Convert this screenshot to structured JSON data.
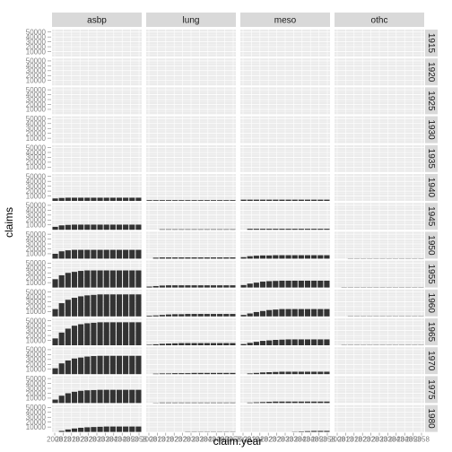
{
  "chart_data": {
    "type": "bar",
    "facet_columns": [
      "asbp",
      "lung",
      "meso",
      "othc"
    ],
    "facet_rows": [
      "1915",
      "1920",
      "1925",
      "1930",
      "1935",
      "1940",
      "1945",
      "1950",
      "1955",
      "1960",
      "1965",
      "1970",
      "1975",
      "1980"
    ],
    "xlabel": "claim.year",
    "ylabel": "claims",
    "ylim": [
      0,
      55000
    ],
    "y_ticks": [
      "10000",
      "20000",
      "30000",
      "40000",
      "50000"
    ],
    "x_ticks": [
      "2008",
      "2013",
      "2018",
      "2023",
      "2028",
      "2033",
      "2038",
      "2043",
      "2048",
      "2053",
      "2058"
    ],
    "x_tick_label_visible": "20",
    "grid": true,
    "bar_color": "#333333",
    "panel_bg": "#ebebeb",
    "strip_bg": "#d9d9d9",
    "series": [
      {
        "cohort": "1940",
        "type": "asbp",
        "values": [
          5000,
          6000,
          6500,
          6500,
          6500,
          6500,
          6500,
          6500,
          6500,
          6500,
          6500,
          6500,
          6500,
          6500
        ]
      },
      {
        "cohort": "1940",
        "type": "lung",
        "values": [
          1500,
          1500,
          1500,
          1500,
          1500,
          1500,
          1500,
          1500,
          1500,
          1500,
          1500,
          1500,
          1500,
          1500
        ]
      },
      {
        "cohort": "1940",
        "type": "meso",
        "values": [
          2500,
          2500,
          2500,
          2500,
          2500,
          2500,
          2500,
          2500,
          2500,
          2500,
          2500,
          2500,
          2500,
          2500
        ]
      },
      {
        "cohort": "1945",
        "type": "asbp",
        "values": [
          6000,
          9000,
          10000,
          10500,
          10500,
          10500,
          10500,
          10500,
          10500,
          10500,
          10500,
          10500,
          10500,
          10500
        ]
      },
      {
        "cohort": "1945",
        "type": "lung",
        "values": [
          0,
          0,
          1000,
          1000,
          1000,
          1000,
          1000,
          1000,
          1000,
          1000,
          1000,
          1000,
          1000,
          1000
        ]
      },
      {
        "cohort": "1945",
        "type": "meso",
        "values": [
          0,
          2000,
          2000,
          2000,
          2000,
          2000,
          2000,
          2000,
          2000,
          2000,
          2000,
          2000,
          2000,
          2000
        ]
      },
      {
        "cohort": "1950",
        "type": "asbp",
        "values": [
          10000,
          15000,
          17000,
          18000,
          18000,
          18000,
          18000,
          18000,
          18000,
          18000,
          18000,
          18000,
          18000,
          18000
        ]
      },
      {
        "cohort": "1950",
        "type": "lung",
        "values": [
          0,
          2000,
          2500,
          2500,
          2500,
          2500,
          2500,
          2500,
          2500,
          2500,
          2500,
          2500,
          2500,
          2500
        ]
      },
      {
        "cohort": "1950",
        "type": "meso",
        "values": [
          3000,
          5000,
          6000,
          6500,
          6500,
          7000,
          7000,
          7000,
          7000,
          7000,
          7000,
          7000,
          7000,
          7000
        ]
      },
      {
        "cohort": "1950",
        "type": "othc",
        "values": [
          0,
          0,
          500,
          500,
          500,
          500,
          500,
          500,
          500,
          500,
          500,
          500,
          500,
          500
        ]
      },
      {
        "cohort": "1955",
        "type": "asbp",
        "values": [
          17000,
          25000,
          30000,
          32000,
          34000,
          35000,
          35000,
          35000,
          35000,
          35000,
          35000,
          35000,
          35000,
          35000
        ]
      },
      {
        "cohort": "1955",
        "type": "lung",
        "values": [
          2000,
          3000,
          4000,
          4500,
          4500,
          4500,
          4500,
          4500,
          4500,
          4500,
          4500,
          4500,
          4500,
          4500
        ]
      },
      {
        "cohort": "1955",
        "type": "meso",
        "values": [
          5000,
          8000,
          10000,
          12000,
          13000,
          13500,
          14000,
          14000,
          14000,
          14000,
          14000,
          14000,
          14000,
          14000
        ]
      },
      {
        "cohort": "1955",
        "type": "othc",
        "values": [
          0,
          500,
          500,
          500,
          500,
          500,
          500,
          500,
          500,
          500,
          500,
          500,
          500,
          500
        ]
      },
      {
        "cohort": "1960",
        "type": "asbp",
        "values": [
          15000,
          27000,
          34000,
          38000,
          41000,
          43000,
          44000,
          45000,
          45000,
          45000,
          45000,
          45000,
          45000,
          45000
        ]
      },
      {
        "cohort": "1960",
        "type": "lung",
        "values": [
          1500,
          2000,
          3000,
          4000,
          4500,
          4500,
          5000,
          5000,
          5000,
          5000,
          5000,
          5000,
          5000,
          5000
        ]
      },
      {
        "cohort": "1960",
        "type": "meso",
        "values": [
          3000,
          6000,
          9000,
          11000,
          13000,
          14000,
          15000,
          15000,
          15000,
          15000,
          15000,
          15000,
          15000,
          15000
        ]
      },
      {
        "cohort": "1960",
        "type": "othc",
        "values": [
          0,
          0,
          500,
          500,
          500,
          500,
          500,
          500,
          500,
          500,
          500,
          500,
          500,
          500
        ]
      },
      {
        "cohort": "1965",
        "type": "asbp",
        "values": [
          14000,
          26000,
          34000,
          40000,
          43000,
          45000,
          46000,
          47000,
          47000,
          47000,
          47000,
          47000,
          47000,
          47000
        ]
      },
      {
        "cohort": "1965",
        "type": "lung",
        "values": [
          1000,
          2000,
          3000,
          3500,
          4000,
          4500,
          4500,
          4500,
          4500,
          4500,
          4500,
          4500,
          4500,
          4500
        ]
      },
      {
        "cohort": "1965",
        "type": "meso",
        "values": [
          2500,
          5000,
          7000,
          9000,
          10000,
          11000,
          11500,
          12000,
          12000,
          12000,
          12000,
          12000,
          12000,
          12000
        ]
      },
      {
        "cohort": "1965",
        "type": "othc",
        "values": [
          0,
          500,
          500,
          500,
          500,
          500,
          500,
          500,
          500,
          500,
          500,
          500,
          500,
          500
        ]
      },
      {
        "cohort": "1970",
        "type": "asbp",
        "values": [
          12000,
          22000,
          28000,
          32000,
          34000,
          36000,
          37000,
          37500,
          37500,
          37500,
          37500,
          37500,
          37500,
          37500
        ]
      },
      {
        "cohort": "1970",
        "type": "lung",
        "values": [
          0,
          1000,
          1500,
          1500,
          2000,
          2000,
          2000,
          2500,
          2500,
          2500,
          2500,
          2500,
          2500,
          2500
        ]
      },
      {
        "cohort": "1970",
        "type": "meso",
        "values": [
          0,
          1500,
          2500,
          3500,
          4000,
          4500,
          5000,
          5000,
          5000,
          5000,
          5000,
          5000,
          5000,
          5000
        ]
      },
      {
        "cohort": "1975",
        "type": "asbp",
        "values": [
          7000,
          15000,
          20000,
          23000,
          25000,
          26000,
          26500,
          27000,
          27000,
          27000,
          27000,
          27000,
          27000,
          27000
        ]
      },
      {
        "cohort": "1975",
        "type": "lung",
        "values": [
          0,
          500,
          1000,
          1000,
          1000,
          1000,
          1000,
          1000,
          1000,
          1000,
          1000,
          1000,
          1000,
          1000
        ]
      },
      {
        "cohort": "1975",
        "type": "meso",
        "values": [
          0,
          1000,
          1500,
          2000,
          2500,
          3000,
          3000,
          3000,
          3000,
          3000,
          3000,
          3000,
          3000,
          3000
        ]
      },
      {
        "cohort": "1980",
        "type": "asbp",
        "values": [
          0,
          2000,
          5000,
          7000,
          8500,
          9500,
          10000,
          10500,
          11000,
          11000,
          11000,
          11000,
          11000,
          11000
        ]
      },
      {
        "cohort": "1980",
        "type": "lung",
        "values": [
          0,
          0,
          0,
          0,
          0,
          0,
          500,
          500,
          500,
          500,
          500,
          500,
          500,
          500
        ]
      },
      {
        "cohort": "1980",
        "type": "meso",
        "values": [
          0,
          0,
          0,
          0,
          0,
          0,
          0,
          0,
          500,
          1000,
          1500,
          2000,
          2000,
          2000
        ]
      }
    ]
  }
}
